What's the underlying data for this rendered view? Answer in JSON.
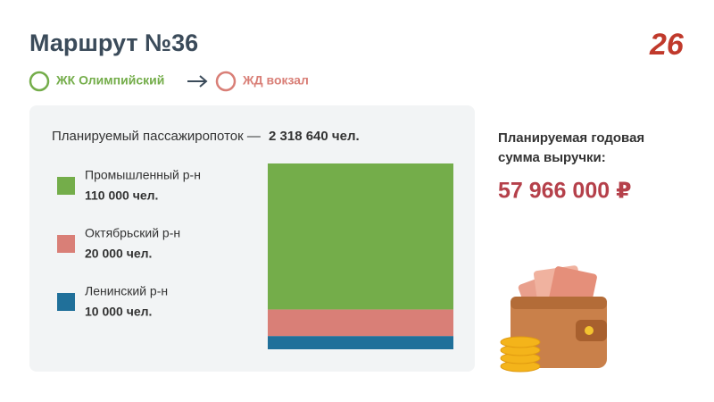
{
  "header": {
    "title": "Маршрут №36",
    "logo": "26"
  },
  "route": {
    "from": "ЖК Олимпийский",
    "to": "ЖД вокзал"
  },
  "chart_data": {
    "type": "stacked-bar",
    "subtitle": "Планируемый пассажиропоток —",
    "subtitle_value": "2 318 640 чел.",
    "series": [
      {
        "name": "Промышленный р-н",
        "color": "#74ad4a",
        "values": [
          110000
        ],
        "value_labels": [
          "110 000 чел."
        ]
      },
      {
        "name": "Октябрьский р-н",
        "color": "#d97f77",
        "values": [
          20000
        ],
        "value_labels": [
          "20 000 чел."
        ]
      },
      {
        "name": "Ленинский р-н",
        "color": "#20709a",
        "values": [
          10000
        ],
        "value_labels": [
          "10 000 чел."
        ]
      }
    ]
  },
  "revenue": {
    "label_line1": "Планируемая годовая",
    "label_line2": "сумма выручки:",
    "amount": "57 966 000 ₽"
  }
}
